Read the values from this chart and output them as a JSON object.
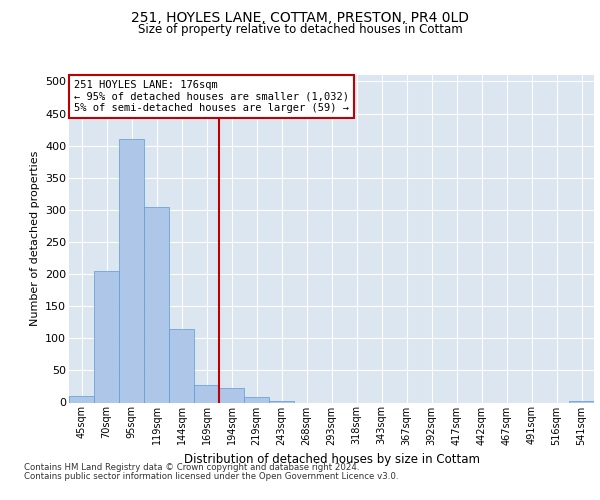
{
  "title_line1": "251, HOYLES LANE, COTTAM, PRESTON, PR4 0LD",
  "title_line2": "Size of property relative to detached houses in Cottam",
  "xlabel": "Distribution of detached houses by size in Cottam",
  "ylabel": "Number of detached properties",
  "footer_line1": "Contains HM Land Registry data © Crown copyright and database right 2024.",
  "footer_line2": "Contains public sector information licensed under the Open Government Licence v3.0.",
  "bar_labels": [
    "45sqm",
    "70sqm",
    "95sqm",
    "119sqm",
    "144sqm",
    "169sqm",
    "194sqm",
    "219sqm",
    "243sqm",
    "268sqm",
    "293sqm",
    "318sqm",
    "343sqm",
    "367sqm",
    "392sqm",
    "417sqm",
    "442sqm",
    "467sqm",
    "491sqm",
    "516sqm",
    "541sqm"
  ],
  "bar_values": [
    10,
    205,
    410,
    305,
    115,
    28,
    22,
    8,
    3,
    0,
    0,
    0,
    0,
    0,
    0,
    0,
    0,
    0,
    0,
    0,
    2
  ],
  "bar_color": "#aec6e8",
  "bar_edge_color": "#5b9bd5",
  "bg_color": "#dce6f1",
  "grid_color": "#ffffff",
  "annotation_text": "251 HOYLES LANE: 176sqm\n← 95% of detached houses are smaller (1,032)\n5% of semi-detached houses are larger (59) →",
  "annotation_box_color": "#c00000",
  "vline_color": "#c00000",
  "ylim": [
    0,
    510
  ],
  "yticks": [
    0,
    50,
    100,
    150,
    200,
    250,
    300,
    350,
    400,
    450,
    500
  ]
}
